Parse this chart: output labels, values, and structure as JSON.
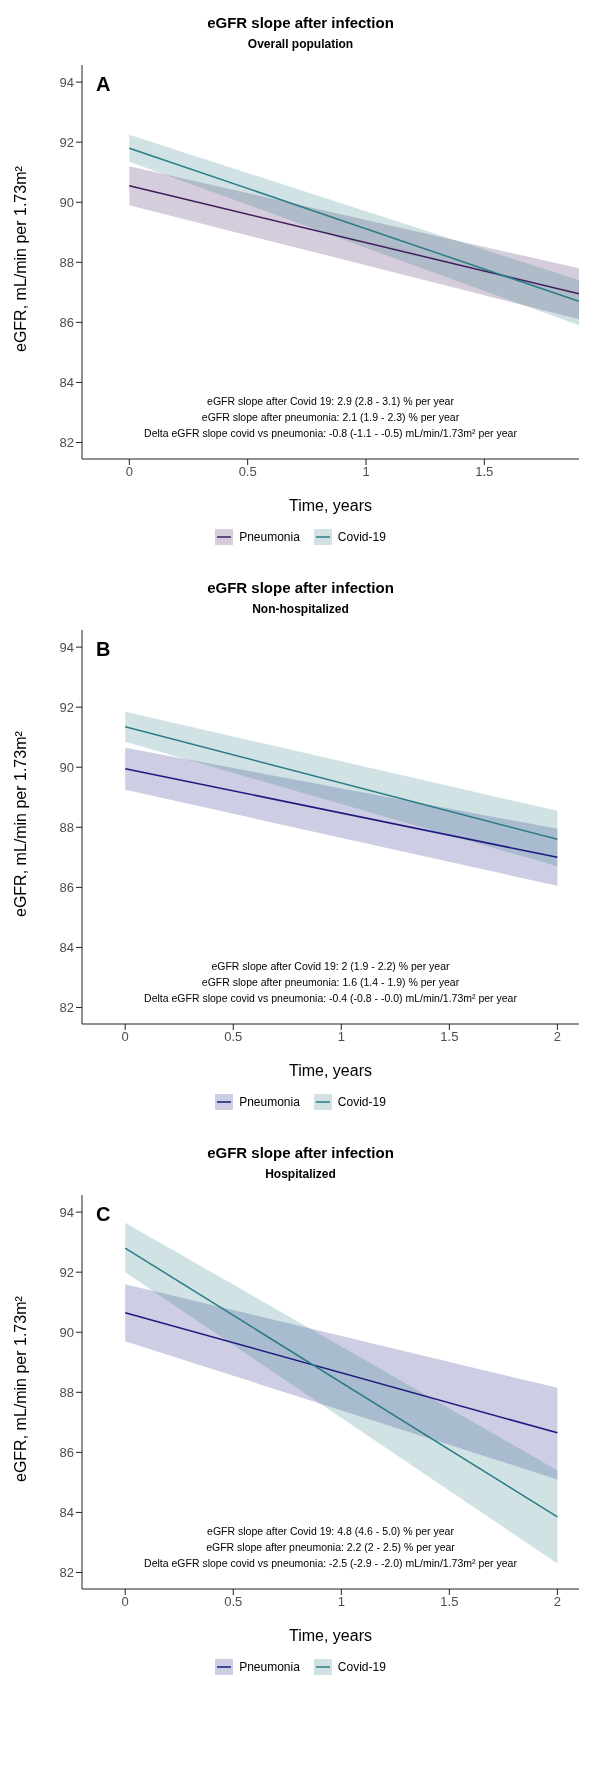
{
  "chart_data": [
    {
      "type": "line",
      "title": "eGFR slope after infection",
      "subtitle": "Overall population",
      "xlabel": "Time, years",
      "ylabel": "eGFR, mL/min per 1.73m²",
      "x": [
        0,
        1.9
      ],
      "xlim": [
        -0.2,
        1.9
      ],
      "xticks": [
        0,
        0.5,
        1,
        1.5
      ],
      "ylim": [
        81.45,
        94.57
      ],
      "yticks": [
        82,
        84,
        86,
        88,
        90,
        92,
        94
      ],
      "grid": false,
      "legend": "bottom",
      "marker": "none",
      "line_style": "solid",
      "series": [
        {
          "name": "Pneumonia",
          "color": "#3f1d5c",
          "values": [
            90.55,
            86.95
          ],
          "lower": [
            89.9,
            86.1
          ],
          "upper": [
            91.2,
            87.8
          ]
        },
        {
          "name": "Covid-19",
          "color": "#2a7c86",
          "values": [
            91.8,
            86.7
          ],
          "lower": [
            91.35,
            85.9
          ],
          "upper": [
            92.25,
            87.4
          ]
        }
      ],
      "annotations": [
        "A",
        "eGFR slope after Covid 19: 2.9 (2.8 - 3.1) % per year",
        "eGFR slope after pneumonia: 2.1 (1.9 - 2.3) % per year",
        "Delta eGFR slope covid vs pneumonia: -0.8 (-1.1 - -0.5) mL/min/1.73m² per year"
      ]
    },
    {
      "type": "line",
      "title": "eGFR slope after infection",
      "subtitle": "Non-hospitalized",
      "xlabel": "Time, years",
      "ylabel": "eGFR, mL/min per 1.73m²",
      "x": [
        0,
        2
      ],
      "xlim": [
        -0.2,
        2.1
      ],
      "xticks": [
        0,
        0.5,
        1,
        1.5,
        2
      ],
      "ylim": [
        81.45,
        94.57
      ],
      "yticks": [
        82,
        84,
        86,
        88,
        90,
        92,
        94
      ],
      "grid": false,
      "legend": "bottom",
      "marker": "none",
      "line_style": "solid",
      "series": [
        {
          "name": "Pneumonia",
          "color": "#1c1a80",
          "values": [
            89.95,
            87.0
          ],
          "lower": [
            89.25,
            86.05
          ],
          "upper": [
            90.65,
            87.95
          ]
        },
        {
          "name": "Covid-19",
          "color": "#2a7c86",
          "values": [
            91.35,
            87.6
          ],
          "lower": [
            90.85,
            86.7
          ],
          "upper": [
            91.85,
            88.55
          ]
        }
      ],
      "annotations": [
        "B",
        "eGFR slope after Covid 19: 2 (1.9 - 2.2) % per year",
        "eGFR slope after pneumonia: 1.6 (1.4 - 1.9) % per year",
        "Delta eGFR slope covid vs pneumonia: -0.4 (-0.8 - -0.0) mL/min/1.73m² per year"
      ]
    },
    {
      "type": "line",
      "title": "eGFR slope after infection",
      "subtitle": "Hospitalized",
      "xlabel": "Time, years",
      "ylabel": "eGFR, mL/min per 1.73m²",
      "x": [
        0,
        2
      ],
      "xlim": [
        -0.2,
        2.1
      ],
      "xticks": [
        0,
        0.5,
        1,
        1.5,
        2
      ],
      "ylim": [
        81.45,
        94.57
      ],
      "yticks": [
        82,
        84,
        86,
        88,
        90,
        92,
        94
      ],
      "grid": false,
      "legend": "bottom",
      "marker": "none",
      "line_style": "solid",
      "series": [
        {
          "name": "Pneumonia",
          "color": "#1c1a80",
          "values": [
            90.65,
            86.65
          ],
          "lower": [
            89.7,
            85.1
          ],
          "upper": [
            91.6,
            88.15
          ]
        },
        {
          "name": "Covid-19",
          "color": "#2a7c86",
          "values": [
            92.8,
            83.85
          ],
          "lower": [
            92.0,
            82.3
          ],
          "upper": [
            93.65,
            85.4
          ]
        }
      ],
      "annotations": [
        "C",
        "eGFR slope after Covid 19: 4.8 (4.6 - 5.0) % per year",
        "eGFR slope after pneumonia: 2.2 (2 - 2.5) % per year",
        "Delta eGFR slope covid vs pneumonia: -2.5 (-2.9 - -2.0) mL/min/1.73m² per year"
      ]
    }
  ]
}
